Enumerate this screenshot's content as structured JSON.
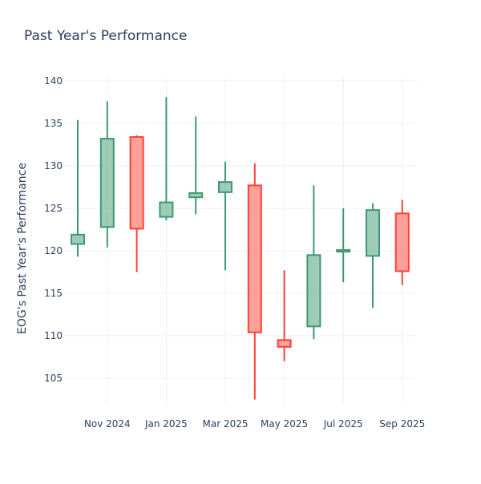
{
  "chart_data": {
    "type": "candlestick",
    "title": "Past Year's Performance",
    "xlabel": "",
    "ylabel": "EOG's Past Year's Performance",
    "ylim": [
      101,
      140
    ],
    "yticks": [
      105,
      110,
      115,
      120,
      125,
      130,
      135,
      140
    ],
    "xticks": [
      {
        "label": "Nov 2024",
        "index": 1
      },
      {
        "label": "Jan 2025",
        "index": 3
      },
      {
        "label": "Mar 2025",
        "index": 5
      },
      {
        "label": "May 2025",
        "index": 7
      },
      {
        "label": "Jul 2025",
        "index": 9
      },
      {
        "label": "Sep 2025",
        "index": 11
      }
    ],
    "grid": true,
    "colors": {
      "increasing": "#3D9970",
      "increasing_fill": "rgba(61,153,112,0.5)",
      "decreasing": "#FF4136",
      "decreasing_fill": "rgba(255,65,54,0.5)",
      "title": "#2a3f5f",
      "grid": "#ebf0f8"
    },
    "candles": [
      {
        "month": "Oct 2024",
        "open": 120.8,
        "high": 135.4,
        "low": 119.3,
        "close": 121.9
      },
      {
        "month": "Nov 2024",
        "open": 122.8,
        "high": 137.6,
        "low": 120.4,
        "close": 133.2
      },
      {
        "month": "Dec 2024",
        "open": 133.4,
        "high": 133.6,
        "low": 117.5,
        "close": 122.6
      },
      {
        "month": "Jan 2025",
        "open": 124.0,
        "high": 138.1,
        "low": 123.6,
        "close": 125.7
      },
      {
        "month": "Feb 2025",
        "open": 126.3,
        "high": 135.8,
        "low": 124.3,
        "close": 126.8
      },
      {
        "month": "Mar 2025",
        "open": 126.9,
        "high": 130.5,
        "low": 117.7,
        "close": 128.1
      },
      {
        "month": "Apr 2025",
        "open": 127.7,
        "high": 130.3,
        "low": 102.5,
        "close": 110.4
      },
      {
        "month": "May 2025",
        "open": 109.5,
        "high": 117.7,
        "low": 107.0,
        "close": 108.7
      },
      {
        "month": "Jun 2025",
        "open": 111.1,
        "high": 127.7,
        "low": 109.6,
        "close": 119.5
      },
      {
        "month": "Jul 2025",
        "open": 119.9,
        "high": 125.0,
        "low": 116.3,
        "close": 120.1
      },
      {
        "month": "Aug 2025",
        "open": 119.4,
        "high": 125.6,
        "low": 113.3,
        "close": 124.8
      },
      {
        "month": "Sep 2025",
        "open": 124.4,
        "high": 126.0,
        "low": 116.0,
        "close": 117.6
      }
    ]
  }
}
